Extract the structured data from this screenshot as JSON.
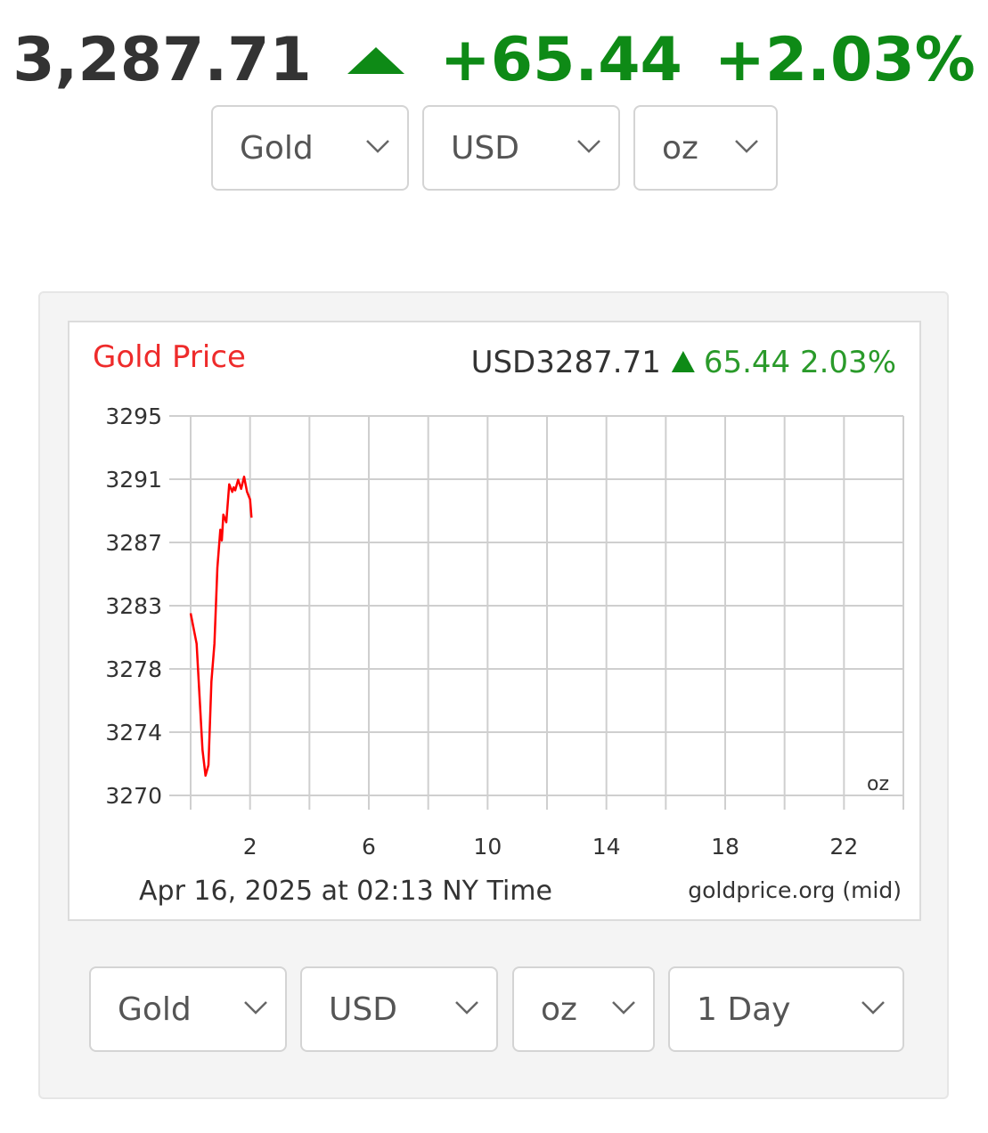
{
  "ticker": {
    "price": "3,287.71",
    "change": "+65.44",
    "percent": "+2.03%",
    "direction_icon": "up-arrow-icon"
  },
  "top_selectors": [
    {
      "value": "Gold"
    },
    {
      "value": "USD"
    },
    {
      "value": "oz"
    }
  ],
  "chart_data": {
    "type": "line",
    "title": "Gold Price",
    "price_label": "USD3287.71",
    "change_label": "65.44 2.03%",
    "direction_icon": "up-triangle-icon",
    "y_ticks": [
      "3295",
      "3291",
      "3287",
      "3283",
      "3278",
      "3274",
      "3270"
    ],
    "y_tick_values": [
      3295,
      3291,
      3287,
      3283,
      3278,
      3274,
      3270
    ],
    "x_ticks": [
      "2",
      "6",
      "10",
      "14",
      "18",
      "22"
    ],
    "x_tick_values": [
      2,
      6,
      10,
      14,
      18,
      22
    ],
    "xlim": [
      0,
      24
    ],
    "ylim": [
      3270,
      3295
    ],
    "unit_label": "oz",
    "timestamp": "Apr 16, 2025 at 02:13 NY Time",
    "source": "goldprice.org (mid)",
    "grid": true,
    "line_color": "#ff0000",
    "x": [
      0,
      0.2,
      0.4,
      0.5,
      0.6,
      0.7,
      0.8,
      0.9,
      1.0,
      1.05,
      1.1,
      1.2,
      1.3,
      1.4,
      1.45,
      1.5,
      1.6,
      1.7,
      1.8,
      1.9,
      2.0,
      2.05
    ],
    "y": [
      3282.0,
      3280.0,
      3273.0,
      3271.3,
      3272.0,
      3277.5,
      3280.0,
      3285.0,
      3287.5,
      3286.8,
      3288.5,
      3288.0,
      3290.5,
      3290.0,
      3290.3,
      3290.1,
      3290.8,
      3290.2,
      3291.0,
      3290.0,
      3289.5,
      3288.3
    ]
  },
  "bottom_selectors": [
    {
      "value": "Gold"
    },
    {
      "value": "USD"
    },
    {
      "value": "oz"
    },
    {
      "value": "1 Day"
    }
  ],
  "colors": {
    "up_green": "#0e8a16",
    "title_red": "#ee2b2b",
    "price_dark": "#333333"
  }
}
